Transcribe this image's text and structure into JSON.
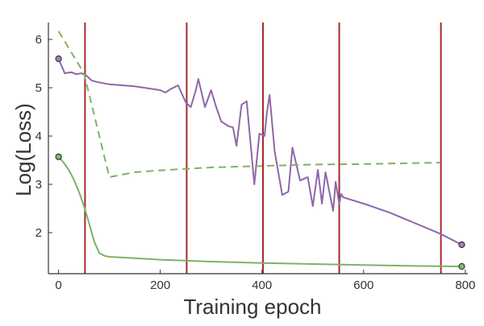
{
  "chart_data": {
    "type": "line",
    "title": "",
    "xlabel": "Training epoch",
    "ylabel": "Log(Loss)",
    "xlim": [
      -20,
      805
    ],
    "ylim": [
      1.15,
      6.35
    ],
    "xticks": [
      0,
      200,
      400,
      600,
      800
    ],
    "yticks": [
      2,
      3,
      4,
      5,
      6
    ],
    "grid": false,
    "legend": "none",
    "vlines": {
      "color": "#a8282b",
      "x": [
        52,
        252,
        402,
        552,
        752
      ]
    },
    "series": [
      {
        "color": "#8e67a8",
        "style": "solid",
        "marker_color": "#a07bb5",
        "x": [
          0,
          12,
          25,
          35,
          45,
          55,
          65,
          75,
          100,
          150,
          200,
          210,
          220,
          235,
          250,
          260,
          270,
          275,
          288,
          300,
          310,
          320,
          335,
          343,
          350,
          360,
          370,
          385,
          395,
          405,
          410,
          415,
          425,
          440,
          452,
          460,
          475,
          490,
          500,
          510,
          518,
          525,
          540,
          545,
          552,
          556,
          560,
          600,
          650,
          700,
          750,
          793
        ],
        "y": [
          5.6,
          5.3,
          5.32,
          5.28,
          5.3,
          5.25,
          5.15,
          5.12,
          5.07,
          5.03,
          4.95,
          4.9,
          4.97,
          5.05,
          4.7,
          4.6,
          4.95,
          5.18,
          4.6,
          4.95,
          4.6,
          4.3,
          4.2,
          4.18,
          3.8,
          4.65,
          4.72,
          3.0,
          4.05,
          4.0,
          4.5,
          4.85,
          3.68,
          2.78,
          2.85,
          3.76,
          3.08,
          3.15,
          2.55,
          3.3,
          2.6,
          3.25,
          2.45,
          3.05,
          2.6,
          2.8,
          2.73,
          2.6,
          2.42,
          2.2,
          1.98,
          1.75
        ]
      },
      {
        "color": "#7eb264",
        "style": "solid",
        "marker_color": "#7fba63",
        "x": [
          0,
          10,
          20,
          30,
          40,
          50,
          60,
          70,
          80,
          90,
          100,
          150,
          200,
          300,
          400,
          500,
          600,
          700,
          793
        ],
        "y": [
          3.57,
          3.45,
          3.3,
          3.1,
          2.85,
          2.55,
          2.2,
          1.82,
          1.58,
          1.52,
          1.5,
          1.47,
          1.44,
          1.4,
          1.37,
          1.35,
          1.33,
          1.31,
          1.3
        ]
      },
      {
        "color": "#7eb264",
        "style": "dashed",
        "x": [
          0,
          50,
          100,
          150,
          200,
          250,
          300,
          400,
          500,
          600,
          700,
          750
        ],
        "y": [
          6.17,
          5.3,
          3.15,
          3.25,
          3.29,
          3.32,
          3.35,
          3.38,
          3.41,
          3.42,
          3.44,
          3.45
        ]
      }
    ]
  }
}
